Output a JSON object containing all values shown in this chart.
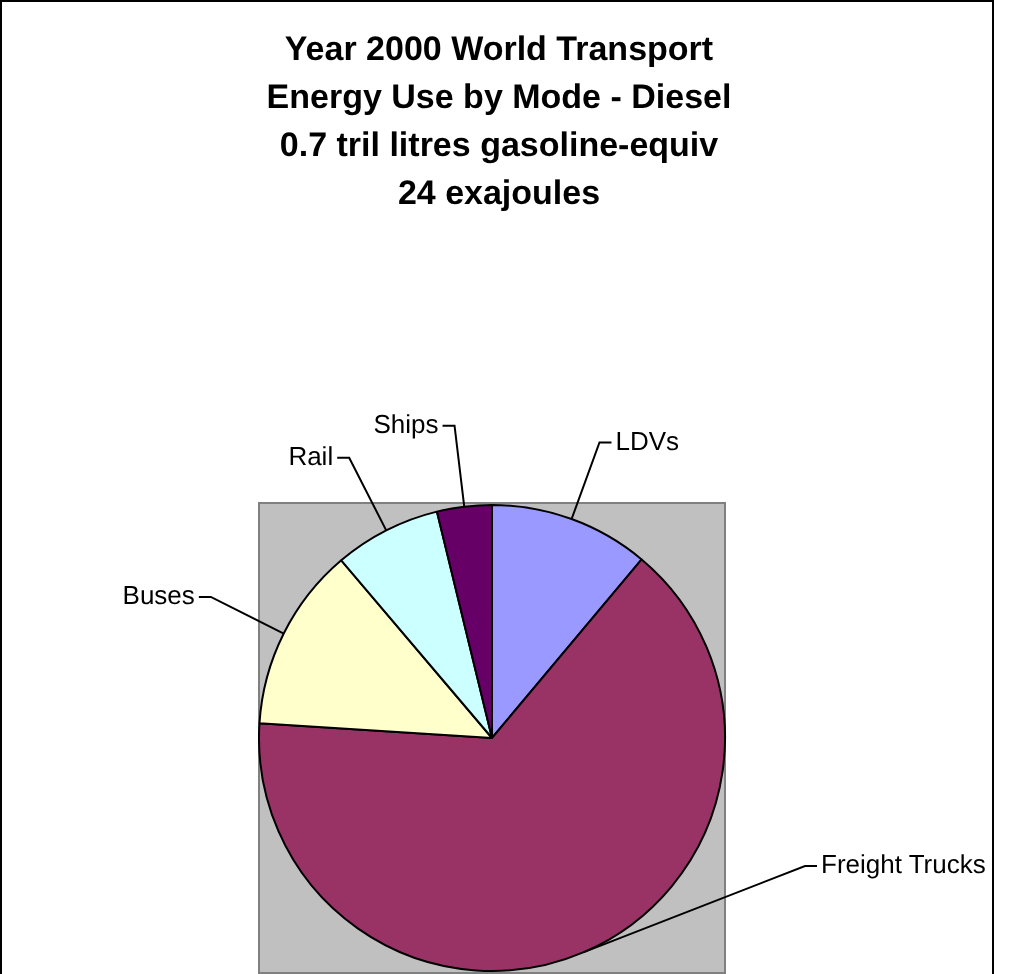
{
  "chart_data": {
    "type": "pie",
    "title": "Year 2000 World Transport\nEnergy Use by Mode - Diesel\n0.7 tril litres gasoline-equiv\n24 exajoules",
    "categories": [
      "LDVs",
      "Freight Trucks",
      "Buses",
      "Rail",
      "Ships"
    ],
    "values": [
      11.1,
      64.9,
      12.8,
      7.4,
      3.8
    ],
    "colors": [
      "#9999ff",
      "#993366",
      "#ffffcc",
      "#ccffff",
      "#660066"
    ],
    "legend": false
  }
}
